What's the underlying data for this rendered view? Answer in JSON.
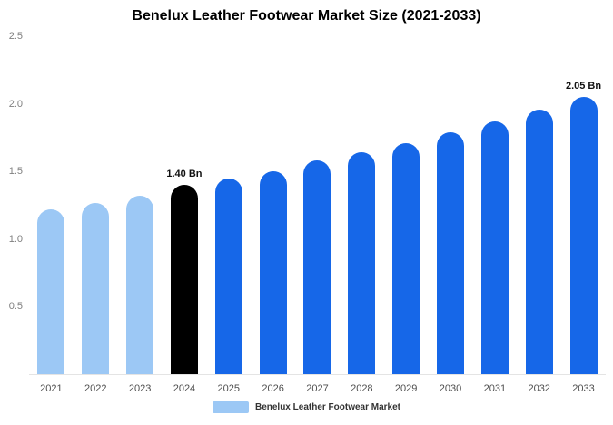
{
  "chart_data": {
    "type": "bar",
    "title": "Benelux Leather Footwear Market Size (2021-2033)",
    "categories": [
      "2021",
      "2022",
      "2023",
      "2024",
      "2025",
      "2026",
      "2027",
      "2028",
      "2029",
      "2030",
      "2031",
      "2032",
      "2033"
    ],
    "values": [
      1.22,
      1.27,
      1.32,
      1.4,
      1.45,
      1.5,
      1.58,
      1.64,
      1.71,
      1.79,
      1.87,
      1.96,
      2.05
    ],
    "unit": "Bn",
    "bar_colors": [
      "#9CC8F5",
      "#9CC8F5",
      "#9CC8F5",
      "#000000",
      "#1667E8",
      "#1667E8",
      "#1667E8",
      "#1667E8",
      "#1667E8",
      "#1667E8",
      "#1667E8",
      "#1667E8",
      "#1667E8"
    ],
    "annotations": [
      {
        "index": 3,
        "text": "1.40 Bn"
      },
      {
        "index": 12,
        "text": "2.05 Bn"
      }
    ],
    "ylim": [
      0,
      2.5
    ],
    "yticks": [
      0.5,
      1.0,
      1.5,
      2.0,
      2.5
    ],
    "grid": "off",
    "legend": {
      "label": "Benelux Leather Footwear Market",
      "color": "#9CC8F5",
      "position": "bottom-center"
    },
    "colors": {
      "historical": "#9CC8F5",
      "base_year": "#000000",
      "forecast": "#1667E8",
      "background": "#FFFFFF"
    }
  }
}
